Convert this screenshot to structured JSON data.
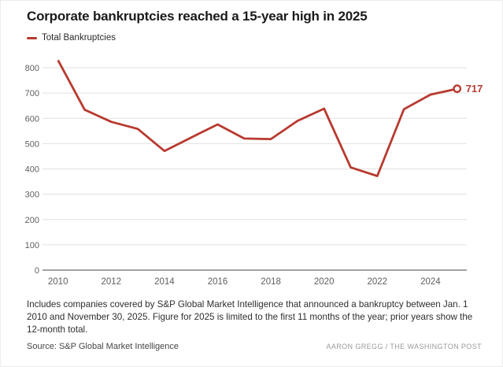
{
  "header": {
    "title": "Corporate bankruptcies reached a 15-year high in 2025"
  },
  "legend": {
    "label": "Total Bankruptcies"
  },
  "chart_data": {
    "type": "line",
    "title": "Corporate bankruptcies reached a 15-year high in 2025",
    "series": [
      {
        "name": "Total Bankruptcies",
        "x": [
          2010,
          2011,
          2012,
          2013,
          2014,
          2015,
          2016,
          2017,
          2018,
          2019,
          2020,
          2021,
          2022,
          2023,
          2024,
          2025
        ],
        "values": [
          830,
          634,
          586,
          558,
          471,
          524,
          576,
          520,
          518,
          590,
          638,
          406,
          372,
          636,
          694,
          717
        ]
      }
    ],
    "x_ticks": [
      2010,
      2012,
      2014,
      2016,
      2018,
      2020,
      2022,
      2024
    ],
    "y_ticks": [
      0,
      100,
      200,
      300,
      400,
      500,
      600,
      700,
      800
    ],
    "xlim": [
      2010,
      2025
    ],
    "ylim": [
      0,
      800
    ],
    "grid": "horizontal",
    "legend_position": "top-left",
    "end_label": {
      "year": 2025,
      "value": 717,
      "text": "717"
    },
    "line_color": "#b83a30"
  },
  "footer": {
    "note": "Includes companies covered by S&P Global Market Intelligence that announced a bankruptcy between Jan. 1 2010 and November 30, 2025. Figure for 2025 is limited to the first 11 months of the year; prior years show the 12-month total.",
    "source": "Source: S&P Global Market Intelligence",
    "credit": "AARON GREGG / THE WASHINGTON POST"
  },
  "colors": {
    "accent_red": "#b83a30",
    "grid_line": "#e1e1e1",
    "axis_line": "#a3a3a3",
    "tick_text": "#5f5f5f",
    "title_text": "#1a1a1a"
  }
}
